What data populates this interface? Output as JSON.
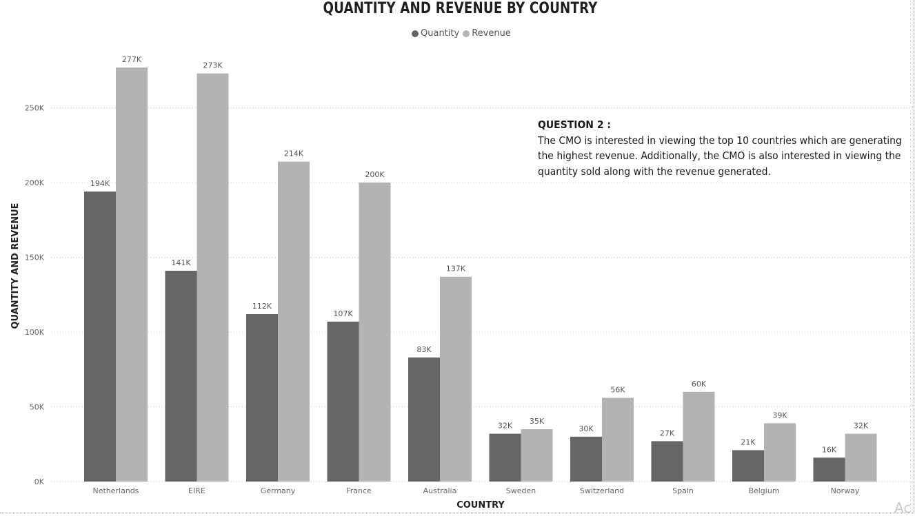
{
  "chart_data": {
    "type": "bar",
    "title": "QUANTITY AND REVENUE BY COUNTRY",
    "xlabel": "COUNTRY",
    "ylabel": "QUANTITY AND REVENUE",
    "categories": [
      "Netherlands",
      "EIRE",
      "Germany",
      "France",
      "Australia",
      "Sweden",
      "Switzerland",
      "Spain",
      "Belgium",
      "Norway"
    ],
    "series": [
      {
        "name": "Quantity",
        "color": "#666666",
        "values": [
          194000,
          141000,
          112000,
          107000,
          83000,
          32000,
          30000,
          27000,
          21000,
          16000
        ],
        "labels": [
          "194K",
          "141K",
          "112K",
          "107K",
          "83K",
          "32K",
          "30K",
          "27K",
          "21K",
          "16K"
        ]
      },
      {
        "name": "Revenue",
        "color": "#b3b3b3",
        "values": [
          277000,
          273000,
          214000,
          200000,
          137000,
          35000,
          56000,
          60000,
          39000,
          32000
        ],
        "labels": [
          "277K",
          "273K",
          "214K",
          "200K",
          "137K",
          "35K",
          "56K",
          "60K",
          "39K",
          "32K"
        ]
      }
    ],
    "ylim": [
      0,
      285000
    ],
    "yticks": [
      0,
      50000,
      100000,
      150000,
      200000,
      250000
    ],
    "ytick_labels": [
      "0K",
      "50K",
      "100K",
      "150K",
      "200K",
      "250K"
    ],
    "grid": true,
    "legend_position": "top-center"
  },
  "annotation": {
    "heading": "QUESTION 2 :",
    "body": "The CMO is interested in viewing the top 10 countries which are generating the highest revenue. Additionally, the CMO is also interested in viewing the quantity sold along with the revenue generated."
  },
  "watermark": "Ac"
}
